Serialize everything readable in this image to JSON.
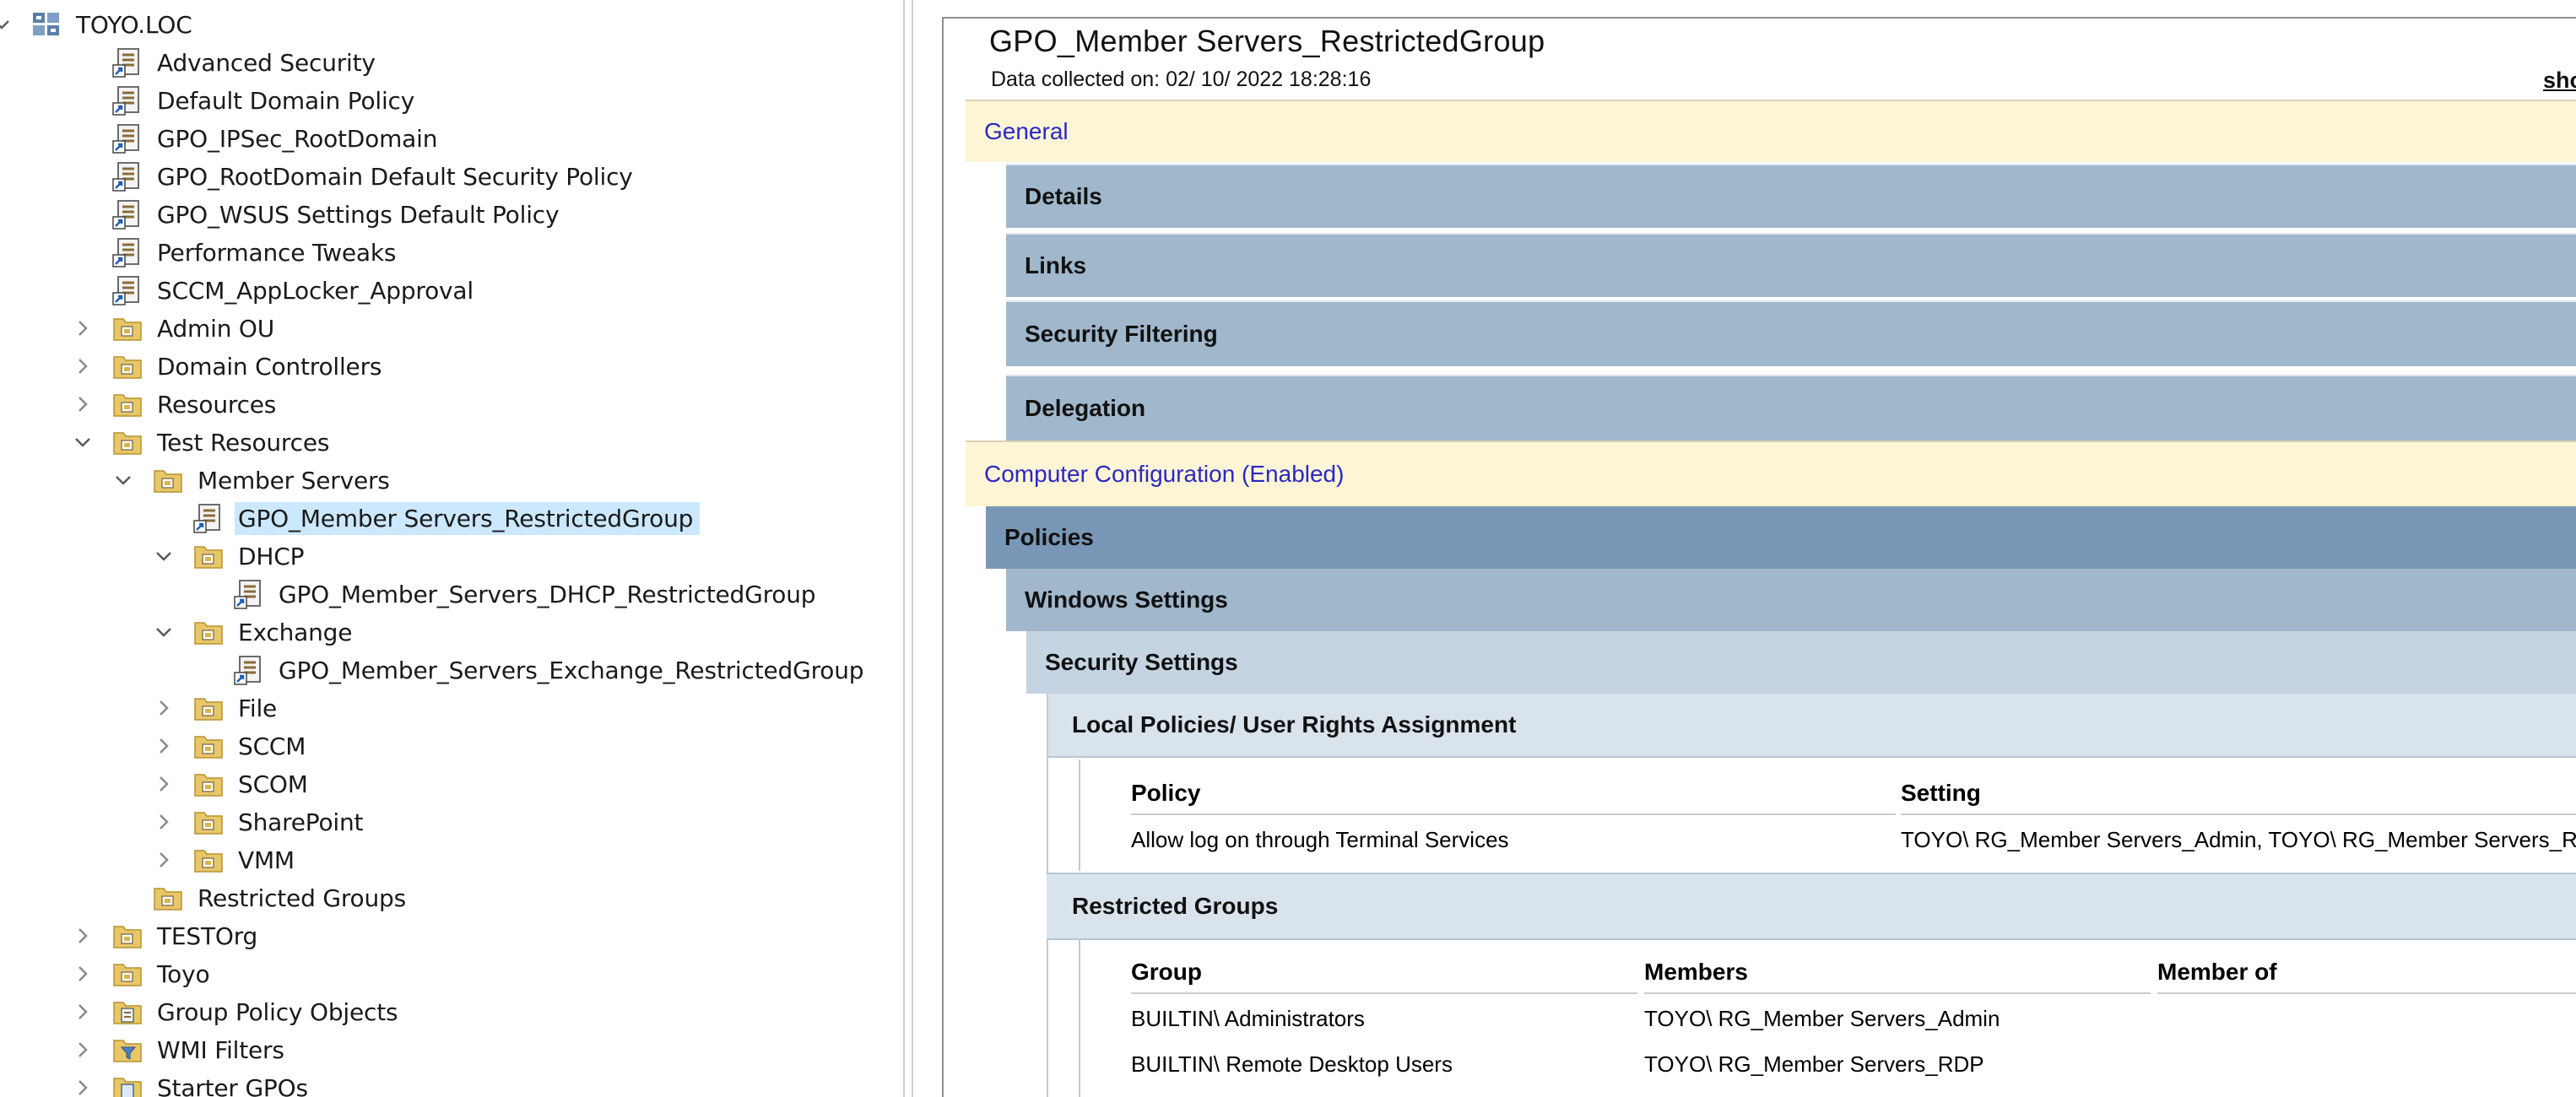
{
  "tree": {
    "items": [
      {
        "label": "TOYO.LOC",
        "level": 0,
        "chevron": "down",
        "icon": "domain-icon"
      },
      {
        "label": "Advanced Security",
        "level": 1,
        "chevron": "",
        "icon": "gpo-link-icon"
      },
      {
        "label": "Default Domain Policy",
        "level": 1,
        "chevron": "",
        "icon": "gpo-link-icon"
      },
      {
        "label": "GPO_IPSec_RootDomain",
        "level": 1,
        "chevron": "",
        "icon": "gpo-link-icon"
      },
      {
        "label": "GPO_RootDomain Default Security Policy",
        "level": 1,
        "chevron": "",
        "icon": "gpo-link-icon"
      },
      {
        "label": "GPO_WSUS Settings Default Policy",
        "level": 1,
        "chevron": "",
        "icon": "gpo-link-icon"
      },
      {
        "label": "Performance Tweaks",
        "level": 1,
        "chevron": "",
        "icon": "gpo-link-icon"
      },
      {
        "label": "SCCM_AppLocker_Approval",
        "level": 1,
        "chevron": "",
        "icon": "gpo-link-icon"
      },
      {
        "label": "Admin OU",
        "level": 1,
        "chevron": "right",
        "icon": "ou-folder-icon"
      },
      {
        "label": "Domain Controllers",
        "level": 1,
        "chevron": "right",
        "icon": "ou-folder-icon"
      },
      {
        "label": "Resources",
        "level": 1,
        "chevron": "right",
        "icon": "ou-folder-icon"
      },
      {
        "label": "Test Resources",
        "level": 1,
        "chevron": "down",
        "icon": "ou-folder-icon"
      },
      {
        "label": "Member Servers",
        "level": 2,
        "chevron": "down",
        "icon": "ou-folder-icon"
      },
      {
        "label": "GPO_Member Servers_RestrictedGroup",
        "level": 3,
        "chevron": "",
        "icon": "gpo-link-icon",
        "selected": true
      },
      {
        "label": "DHCP",
        "level": 3,
        "chevron": "down",
        "icon": "ou-folder-icon"
      },
      {
        "label": "GPO_Member_Servers_DHCP_RestrictedGroup",
        "level": 4,
        "chevron": "",
        "icon": "gpo-link-icon"
      },
      {
        "label": "Exchange",
        "level": 3,
        "chevron": "down",
        "icon": "ou-folder-icon"
      },
      {
        "label": "GPO_Member_Servers_Exchange_RestrictedGroup",
        "level": 4,
        "chevron": "",
        "icon": "gpo-link-icon"
      },
      {
        "label": "File",
        "level": 3,
        "chevron": "right",
        "icon": "ou-folder-icon"
      },
      {
        "label": "SCCM",
        "level": 3,
        "chevron": "right",
        "icon": "ou-folder-icon"
      },
      {
        "label": "SCOM",
        "level": 3,
        "chevron": "right",
        "icon": "ou-folder-icon"
      },
      {
        "label": "SharePoint",
        "level": 3,
        "chevron": "right",
        "icon": "ou-folder-icon"
      },
      {
        "label": "VMM",
        "level": 3,
        "chevron": "right",
        "icon": "ou-folder-icon"
      },
      {
        "label": "Restricted Groups",
        "level": 2,
        "chevron": "",
        "icon": "ou-folder-icon"
      },
      {
        "label": "TESTOrg",
        "level": 1,
        "chevron": "right",
        "icon": "ou-folder-icon"
      },
      {
        "label": "Toyo",
        "level": 1,
        "chevron": "right",
        "icon": "ou-folder-icon"
      },
      {
        "label": "Group Policy Objects",
        "level": 1,
        "chevron": "right",
        "icon": "gpo-container-icon"
      },
      {
        "label": "WMI Filters",
        "level": 1,
        "chevron": "right",
        "icon": "wmi-filter-icon"
      },
      {
        "label": "Starter GPOs",
        "level": 1,
        "chevron": "right",
        "icon": "starter-gpo-icon"
      }
    ]
  },
  "report": {
    "title": "GPO_Member Servers_RestrictedGroup",
    "collected": "Data collected on: 02/ 10/ 2022 18:28:16",
    "show_link": "sho",
    "general": "General",
    "details": "Details",
    "links": "Links",
    "security_filtering": "Security Filtering",
    "delegation": "Delegation",
    "computer_config": "Computer Configuration (Enabled)",
    "policies": "Policies",
    "windows_settings": "Windows Settings",
    "security_settings": "Security Settings",
    "local_policies": "Local Policies/ User Rights Assignment",
    "ura_table": {
      "headers": [
        "Policy",
        "Setting"
      ],
      "rows": [
        [
          "Allow log on through Terminal Services",
          "TOYO\\ RG_Member Servers_Admin, TOYO\\ RG_Member Servers_R"
        ]
      ]
    },
    "restricted_groups": "Restricted Groups",
    "rg_table": {
      "headers": [
        "Group",
        "Members",
        "Member of"
      ],
      "rows": [
        [
          "BUILTIN\\ Administrators",
          "TOYO\\ RG_Member Servers_Admin",
          ""
        ],
        [
          "BUILTIN\\ Remote Desktop Users",
          "TOYO\\ RG_Member Servers_RDP",
          ""
        ]
      ]
    }
  },
  "colors": {
    "header_band": "#fdf5d6",
    "header_text": "#2a28c5",
    "blue_band": "#a0b7cc",
    "policies_band": "#7897b6",
    "security_band": "#c4d4e2",
    "local_band": "#d9e3ec",
    "selection": "#cce8ff"
  }
}
